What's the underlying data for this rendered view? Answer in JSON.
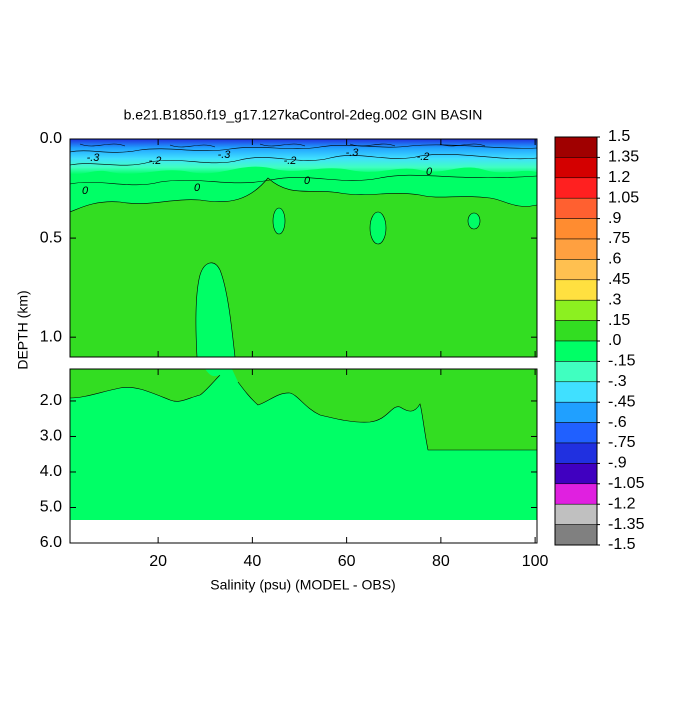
{
  "chart_data": {
    "type": "contour",
    "title": "b.e21.B1850.f19_g17.127kaControl-2deg.002 GIN BASIN",
    "x_label": "Salinity (psu) (MODEL - OBS)",
    "y_label": "DEPTH (km)",
    "xlim": [
      1.3,
      100.4
    ],
    "xticks": [
      20,
      40,
      60,
      80,
      100
    ],
    "panels": [
      {
        "ylim": [
          0,
          1.1
        ],
        "yticks": [
          {
            "value": 0,
            "label": "0.0"
          },
          {
            "value": 0.5,
            "label": "0.5"
          },
          {
            "value": 1,
            "label": "1.0"
          }
        ]
      },
      {
        "ylim": [
          1.1,
          6
        ],
        "yticks": [
          {
            "value": 2,
            "label": "2.0"
          },
          {
            "value": 3,
            "label": "3.0"
          },
          {
            "value": 4,
            "label": "4.0"
          },
          {
            "value": 5,
            "label": "5.0"
          },
          {
            "value": 6,
            "label": "6.0"
          }
        ]
      }
    ],
    "colorbar": {
      "clim": [
        -1.5,
        1.5
      ],
      "levels": [
        1.5,
        1.35,
        1.2,
        1.05,
        {
          "value": 0.9,
          "label": ".9"
        },
        {
          "value": 0.75,
          "label": ".75"
        },
        {
          "value": 0.6,
          "label": ".6"
        },
        {
          "value": 0.45,
          "label": ".45"
        },
        {
          "value": 0.3,
          "label": ".3"
        },
        {
          "value": 0.15,
          "label": ".15"
        },
        {
          "value": 0,
          "label": ".0"
        },
        {
          "value": -0.15,
          "label": "-.15"
        },
        {
          "value": -0.3,
          "label": "-.3"
        },
        {
          "value": -0.45,
          "label": "-.45"
        },
        {
          "value": -0.6,
          "label": "-.6"
        },
        {
          "value": -0.75,
          "label": "-.75"
        },
        {
          "value": -0.9,
          "label": "-.9"
        },
        -1.05,
        -1.2,
        -1.35,
        -1.5
      ],
      "colors": [
        "#a00000",
        "#d40000",
        "#ff2020",
        "#ff6030",
        "#ff8c30",
        "#ffa040",
        "#ffc050",
        "#ffe040",
        "#8cf020",
        "#33dd22",
        "#00ff66",
        "#40ffc0",
        "#40e0ff",
        "#20a0ff",
        "#2060ff",
        "#2030e0",
        "#4000c0",
        "#e020e0",
        "#c0c0c0",
        "#808080"
      ]
    },
    "contour_labels": [
      "-.3",
      "-.2",
      "-.3",
      "-.2",
      "-.3",
      "-.2",
      "0",
      "0",
      "0",
      "0"
    ]
  }
}
